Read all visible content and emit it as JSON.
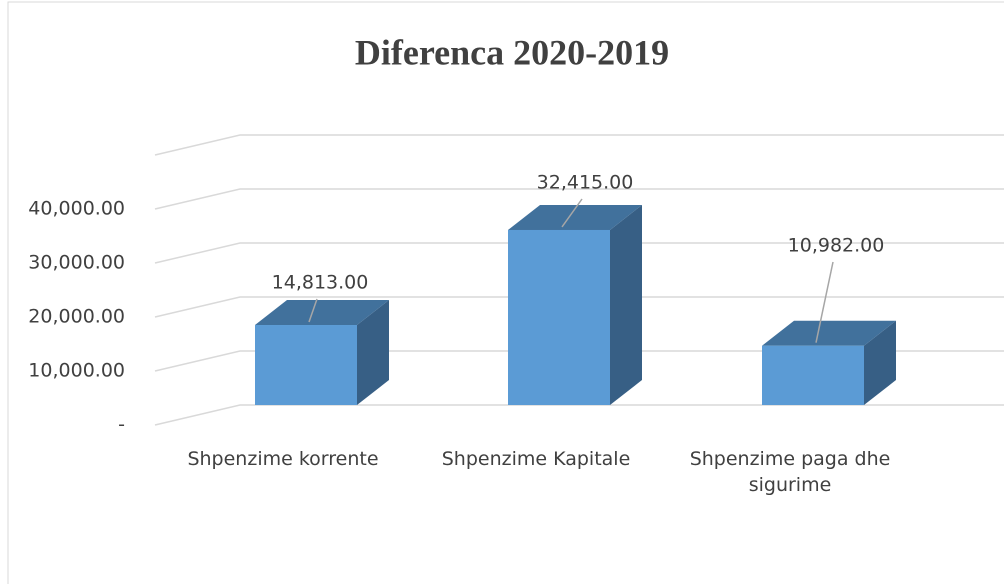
{
  "chart_data": {
    "type": "bar3d",
    "title": "Diferenca 2020-2019",
    "categories": [
      "Shpenzime korrente",
      "Shpenzime Kapitale",
      "Shpenzime paga dhe sigurime"
    ],
    "values": [
      14813,
      32415,
      10982
    ],
    "value_labels": [
      "14,813.00",
      "32,415.00",
      "10,982.00"
    ],
    "color": "#5b9bd5",
    "ylim": [
      0,
      50000
    ],
    "yticks": [
      {
        "value": 0,
        "label": "-"
      },
      {
        "value": 10000,
        "label": "10,000.00"
      },
      {
        "value": 20000,
        "label": "20,000.00"
      },
      {
        "value": 30000,
        "label": "30,000.00"
      },
      {
        "value": 40000,
        "label": "40,000.00"
      }
    ],
    "grid": true
  }
}
